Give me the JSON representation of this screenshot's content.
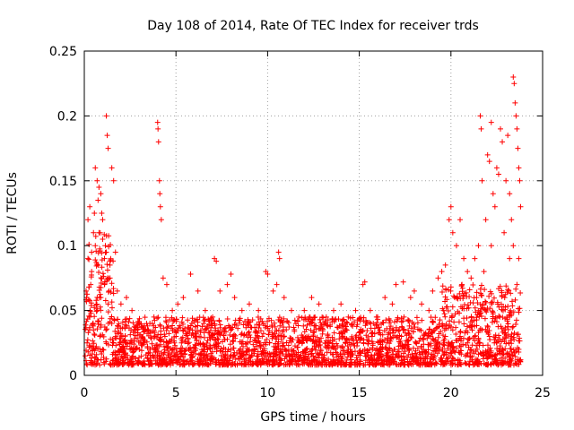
{
  "chart_data": {
    "type": "scatter",
    "title": "Day 108 of 2014, Rate Of TEC Index for receiver trds",
    "xlabel": "GPS time / hours",
    "ylabel": "ROTI / TECUs",
    "xlim": [
      0,
      25
    ],
    "ylim": [
      0,
      0.25
    ],
    "xticks": [
      0,
      5,
      10,
      15,
      20,
      25
    ],
    "yticks": [
      0,
      0.05,
      0.1,
      0.15,
      0.2,
      0.25
    ],
    "grid": true,
    "marker": "+",
    "color": "#ff0000",
    "series": [
      {
        "points": [
          [
            0.1,
            0.065
          ],
          [
            0.2,
            0.12
          ],
          [
            0.3,
            0.13
          ],
          [
            0.4,
            0.095
          ],
          [
            0.5,
            0.11
          ],
          [
            0.6,
            0.16
          ],
          [
            0.7,
            0.15
          ],
          [
            0.8,
            0.145
          ],
          [
            0.9,
            0.14
          ],
          [
            1.0,
            0.12
          ],
          [
            1.1,
            0.09
          ],
          [
            1.2,
            0.2
          ],
          [
            1.25,
            0.185
          ],
          [
            1.3,
            0.175
          ],
          [
            1.4,
            0.085
          ],
          [
            1.5,
            0.16
          ],
          [
            1.6,
            0.15
          ],
          [
            1.7,
            0.095
          ],
          [
            1.8,
            0.065
          ],
          [
            2.0,
            0.055
          ],
          [
            0.3,
            0.045
          ],
          [
            0.5,
            0.035
          ],
          [
            0.7,
            0.05
          ],
          [
            0.9,
            0.06
          ],
          [
            1.1,
            0.07
          ],
          [
            1.3,
            0.055
          ],
          [
            1.5,
            0.04
          ],
          [
            0.4,
            0.08
          ],
          [
            0.6,
            0.1
          ],
          [
            0.8,
            0.11
          ],
          [
            1.0,
            0.105
          ],
          [
            1.2,
            0.095
          ],
          [
            1.4,
            0.075
          ],
          [
            0.2,
            0.09
          ],
          [
            0.35,
            0.07
          ],
          [
            0.55,
            0.125
          ],
          [
            0.75,
            0.135
          ],
          [
            0.95,
            0.125
          ],
          [
            1.15,
            0.1
          ],
          [
            1.35,
            0.065
          ],
          [
            2.3,
            0.06
          ],
          [
            2.6,
            0.05
          ],
          [
            3.0,
            0.04
          ],
          [
            3.5,
            0.035
          ],
          [
            3.8,
            0.045
          ],
          [
            4.0,
            0.195
          ],
          [
            4.02,
            0.19
          ],
          [
            4.05,
            0.18
          ],
          [
            4.1,
            0.15
          ],
          [
            4.12,
            0.14
          ],
          [
            4.15,
            0.13
          ],
          [
            4.2,
            0.12
          ],
          [
            4.3,
            0.075
          ],
          [
            4.5,
            0.07
          ],
          [
            4.8,
            0.05
          ],
          [
            5.1,
            0.055
          ],
          [
            5.4,
            0.06
          ],
          [
            5.8,
            0.078
          ],
          [
            6.2,
            0.065
          ],
          [
            6.6,
            0.05
          ],
          [
            7.0,
            0.045
          ],
          [
            7.1,
            0.09
          ],
          [
            7.2,
            0.088
          ],
          [
            7.4,
            0.065
          ],
          [
            7.8,
            0.07
          ],
          [
            8.0,
            0.078
          ],
          [
            8.2,
            0.06
          ],
          [
            8.6,
            0.05
          ],
          [
            9.0,
            0.055
          ],
          [
            9.5,
            0.05
          ],
          [
            9.9,
            0.08
          ],
          [
            10.0,
            0.078
          ],
          [
            10.3,
            0.065
          ],
          [
            10.5,
            0.07
          ],
          [
            10.6,
            0.095
          ],
          [
            10.65,
            0.09
          ],
          [
            10.9,
            0.06
          ],
          [
            11.3,
            0.05
          ],
          [
            11.7,
            0.045
          ],
          [
            12.0,
            0.05
          ],
          [
            12.4,
            0.06
          ],
          [
            12.8,
            0.055
          ],
          [
            13.2,
            0.045
          ],
          [
            13.6,
            0.05
          ],
          [
            14.0,
            0.055
          ],
          [
            14.4,
            0.045
          ],
          [
            14.8,
            0.05
          ],
          [
            15.2,
            0.07
          ],
          [
            15.3,
            0.072
          ],
          [
            15.6,
            0.05
          ],
          [
            16.0,
            0.045
          ],
          [
            16.4,
            0.06
          ],
          [
            16.8,
            0.055
          ],
          [
            17.0,
            0.07
          ],
          [
            17.4,
            0.072
          ],
          [
            17.8,
            0.06
          ],
          [
            18.0,
            0.065
          ],
          [
            18.4,
            0.055
          ],
          [
            18.8,
            0.05
          ],
          [
            19.0,
            0.065
          ],
          [
            19.3,
            0.075
          ],
          [
            19.5,
            0.08
          ],
          [
            19.7,
            0.085
          ],
          [
            19.9,
            0.12
          ],
          [
            20.0,
            0.13
          ],
          [
            20.1,
            0.11
          ],
          [
            20.3,
            0.1
          ],
          [
            20.5,
            0.12
          ],
          [
            20.7,
            0.09
          ],
          [
            20.9,
            0.08
          ],
          [
            21.1,
            0.075
          ],
          [
            21.3,
            0.09
          ],
          [
            21.5,
            0.1
          ],
          [
            21.6,
            0.2
          ],
          [
            21.65,
            0.19
          ],
          [
            21.7,
            0.15
          ],
          [
            21.9,
            0.12
          ],
          [
            22.0,
            0.17
          ],
          [
            22.1,
            0.165
          ],
          [
            22.2,
            0.195
          ],
          [
            22.3,
            0.14
          ],
          [
            22.5,
            0.16
          ],
          [
            22.6,
            0.155
          ],
          [
            22.7,
            0.19
          ],
          [
            22.8,
            0.18
          ],
          [
            23.0,
            0.15
          ],
          [
            23.1,
            0.185
          ],
          [
            23.2,
            0.14
          ],
          [
            23.3,
            0.12
          ],
          [
            23.4,
            0.23
          ],
          [
            23.45,
            0.225
          ],
          [
            23.5,
            0.21
          ],
          [
            23.55,
            0.2
          ],
          [
            23.6,
            0.19
          ],
          [
            23.65,
            0.175
          ],
          [
            23.7,
            0.16
          ],
          [
            23.75,
            0.15
          ],
          [
            23.8,
            0.13
          ],
          [
            23.4,
            0.1
          ],
          [
            23.2,
            0.09
          ],
          [
            22.9,
            0.11
          ],
          [
            22.4,
            0.13
          ],
          [
            22.2,
            0.1
          ],
          [
            21.8,
            0.08
          ],
          [
            21.4,
            0.06
          ],
          [
            20.6,
            0.07
          ],
          [
            20.2,
            0.06
          ],
          [
            19.6,
            0.05
          ],
          [
            23.6,
            0.07
          ],
          [
            23.7,
            0.09
          ],
          [
            0.15,
            0.025
          ],
          [
            0.45,
            0.02
          ],
          [
            0.85,
            0.03
          ],
          [
            1.6,
            0.025
          ],
          [
            2.1,
            0.03
          ],
          [
            2.5,
            0.02
          ],
          [
            3.2,
            0.025
          ],
          [
            3.6,
            0.02
          ],
          [
            4.4,
            0.03
          ],
          [
            4.9,
            0.02
          ],
          [
            5.3,
            0.025
          ],
          [
            5.7,
            0.02
          ],
          [
            6.1,
            0.03
          ],
          [
            6.5,
            0.02
          ],
          [
            6.9,
            0.015
          ],
          [
            7.3,
            0.025
          ],
          [
            7.7,
            0.02
          ],
          [
            8.1,
            0.03
          ],
          [
            8.5,
            0.02
          ],
          [
            8.9,
            0.025
          ],
          [
            9.3,
            0.02
          ],
          [
            9.7,
            0.03
          ],
          [
            10.1,
            0.025
          ],
          [
            10.5,
            0.02
          ],
          [
            10.9,
            0.03
          ],
          [
            11.3,
            0.02
          ],
          [
            11.7,
            0.025
          ],
          [
            12.1,
            0.02
          ],
          [
            12.5,
            0.03
          ],
          [
            12.9,
            0.02
          ],
          [
            13.3,
            0.025
          ],
          [
            13.7,
            0.02
          ],
          [
            14.1,
            0.03
          ],
          [
            14.5,
            0.02
          ],
          [
            14.9,
            0.025
          ],
          [
            15.3,
            0.02
          ],
          [
            15.7,
            0.03
          ],
          [
            16.1,
            0.02
          ],
          [
            16.5,
            0.025
          ],
          [
            16.9,
            0.02
          ],
          [
            17.3,
            0.03
          ],
          [
            17.7,
            0.02
          ],
          [
            18.1,
            0.025
          ],
          [
            18.5,
            0.02
          ],
          [
            18.9,
            0.03
          ],
          [
            19.3,
            0.025
          ],
          [
            19.7,
            0.03
          ],
          [
            20.1,
            0.035
          ],
          [
            20.5,
            0.03
          ],
          [
            20.9,
            0.025
          ],
          [
            21.3,
            0.03
          ],
          [
            21.7,
            0.035
          ],
          [
            22.1,
            0.03
          ],
          [
            22.5,
            0.025
          ],
          [
            22.9,
            0.035
          ],
          [
            23.3,
            0.03
          ],
          [
            23.7,
            0.02
          ],
          [
            0.05,
            0.015
          ],
          [
            23.8,
            0.012
          ],
          [
            12.0,
            0.01
          ]
        ]
      }
    ]
  }
}
